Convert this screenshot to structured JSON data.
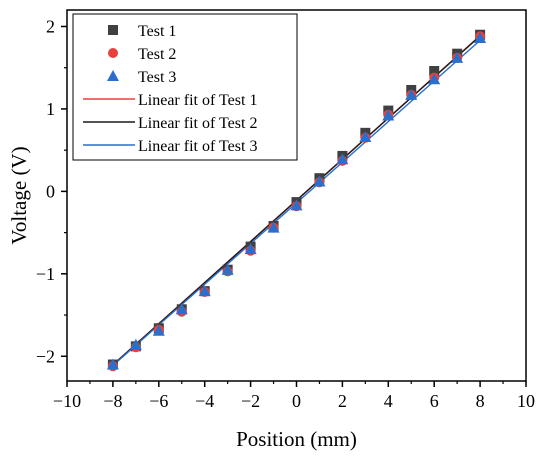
{
  "chart_data": {
    "type": "scatter",
    "title": "",
    "xlabel": "Position (mm)",
    "ylabel": "Voltage (V)",
    "xlim": [
      -10,
      10
    ],
    "ylim": [
      -2.3,
      2.2
    ],
    "xticks": [
      -10,
      -8,
      -6,
      -4,
      -2,
      0,
      2,
      4,
      6,
      8,
      10
    ],
    "xtick_labels": [
      "−10",
      "−8",
      "−6",
      "−4",
      "−2",
      "0",
      "2",
      "4",
      "6",
      "8",
      "10"
    ],
    "yticks": [
      -2,
      -1,
      0,
      1,
      2
    ],
    "ytick_labels": [
      "−2",
      "−1",
      "0",
      "1",
      "2"
    ],
    "grid": false,
    "legend_position": "top-left",
    "x": [
      -8,
      -7,
      -6,
      -5,
      -4,
      -3,
      -2,
      -1,
      0,
      1,
      2,
      3,
      4,
      5,
      6,
      7,
      8
    ],
    "series": [
      {
        "name": "Test 1",
        "marker": "square",
        "color": "#404040",
        "values": [
          -2.1,
          -1.88,
          -1.66,
          -1.43,
          -1.21,
          -0.95,
          -0.67,
          -0.42,
          -0.13,
          0.16,
          0.43,
          0.71,
          0.98,
          1.23,
          1.46,
          1.67,
          1.9
        ]
      },
      {
        "name": "Test 2",
        "marker": "circle",
        "color": "#e8413c",
        "values": [
          -2.12,
          -1.89,
          -1.68,
          -1.46,
          -1.22,
          -0.97,
          -0.72,
          -0.44,
          -0.18,
          0.11,
          0.37,
          0.65,
          0.93,
          1.17,
          1.38,
          1.62,
          1.88
        ]
      },
      {
        "name": "Test 3",
        "marker": "triangle",
        "color": "#2a6fcc",
        "values": [
          -2.1,
          -1.86,
          -1.69,
          -1.43,
          -1.21,
          -0.95,
          -0.7,
          -0.44,
          -0.17,
          0.12,
          0.39,
          0.66,
          0.92,
          1.17,
          1.36,
          1.62,
          1.86
        ]
      }
    ],
    "fits": [
      {
        "name": "Linear fit of Test 1",
        "color": "#e8413c",
        "slope": 0.2494,
        "intercept": -0.107
      },
      {
        "name": "Linear fit of Test 2",
        "color": "#1a1a1a",
        "slope": 0.2494,
        "intercept": -0.11
      },
      {
        "name": "Linear fit of Test 3",
        "color": "#2a6fcc",
        "slope": 0.2465,
        "intercept": -0.14
      }
    ]
  }
}
